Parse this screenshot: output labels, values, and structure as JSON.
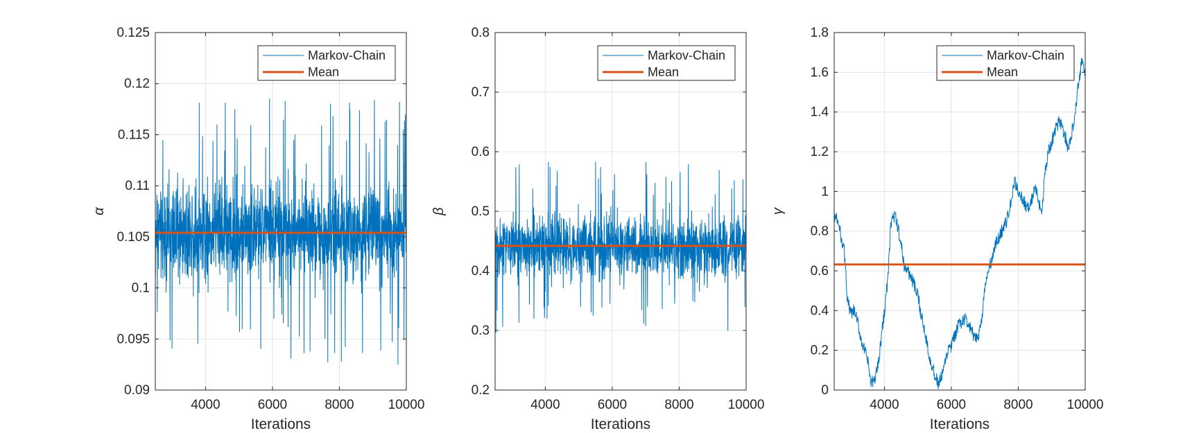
{
  "chart_data": [
    {
      "type": "line",
      "ylabel": "α",
      "xlabel": "Iterations",
      "xlim": [
        2500,
        10000
      ],
      "ylim": [
        0.09,
        0.125
      ],
      "xticks": [
        4000,
        6000,
        8000,
        10000
      ],
      "xtick_labels": [
        "4000",
        "6000",
        "8000",
        "10000"
      ],
      "yticks": [
        0.09,
        0.095,
        0.1,
        0.105,
        0.11,
        0.115,
        0.12,
        0.125
      ],
      "ytick_labels": [
        "0.09",
        "0.095",
        "0.1",
        "0.105",
        "0.11",
        "0.115",
        "0.12",
        "0.125"
      ],
      "grid": true,
      "legend_position": "top-right",
      "series": [
        {
          "name": "Markov-Chain",
          "color": "#0072BD",
          "mode": "noise",
          "x": [
            2500,
            10000
          ],
          "center": 0.1055,
          "spread": 0.011,
          "min": 0.0907,
          "max": 0.1222
        },
        {
          "name": "Mean",
          "color": "#D95319",
          "x": [
            2500,
            10000
          ],
          "y": [
            0.1054,
            0.1054
          ]
        }
      ]
    },
    {
      "type": "line",
      "ylabel": "β",
      "xlabel": "Iterations",
      "xlim": [
        2500,
        10000
      ],
      "ylim": [
        0.2,
        0.8
      ],
      "xticks": [
        4000,
        6000,
        8000,
        10000
      ],
      "xtick_labels": [
        "4000",
        "6000",
        "8000",
        "10000"
      ],
      "yticks": [
        0.2,
        0.3,
        0.4,
        0.5,
        0.6,
        0.7,
        0.8
      ],
      "ytick_labels": [
        "0.2",
        "0.3",
        "0.4",
        "0.5",
        "0.6",
        "0.7",
        "0.8"
      ],
      "grid": true,
      "legend_position": "top-right",
      "series": [
        {
          "name": "Markov-Chain",
          "color": "#0072BD",
          "mode": "noise",
          "x": [
            2500,
            10000
          ],
          "center": 0.44,
          "spread": 0.12,
          "min": 0.26,
          "max": 0.74
        },
        {
          "name": "Mean",
          "color": "#D95319",
          "x": [
            2500,
            10000
          ],
          "y": [
            0.442,
            0.442
          ]
        }
      ]
    },
    {
      "type": "line",
      "ylabel": "γ",
      "xlabel": "Iterations",
      "xlim": [
        2500,
        10000
      ],
      "ylim": [
        0,
        1.8
      ],
      "xticks": [
        4000,
        6000,
        8000,
        10000
      ],
      "xtick_labels": [
        "4000",
        "6000",
        "8000",
        "10000"
      ],
      "yticks": [
        0,
        0.2,
        0.4,
        0.6,
        0.8,
        1,
        1.2,
        1.4,
        1.6,
        1.8
      ],
      "ytick_labels": [
        "0",
        "0.2",
        "0.4",
        "0.6",
        "0.8",
        "1",
        "1.2",
        "1.4",
        "1.6",
        "1.8"
      ],
      "grid": true,
      "legend_position": "top-right",
      "series": [
        {
          "name": "Markov-Chain",
          "color": "#0072BD",
          "mode": "walk",
          "x": [
            2500,
            2600,
            2700,
            2800,
            2900,
            3000,
            3100,
            3200,
            3300,
            3400,
            3500,
            3600,
            3700,
            3800,
            3900,
            4000,
            4100,
            4200,
            4300,
            4400,
            4500,
            4600,
            4700,
            4800,
            4900,
            5000,
            5100,
            5200,
            5300,
            5400,
            5500,
            5600,
            5700,
            5800,
            5900,
            6000,
            6100,
            6200,
            6300,
            6400,
            6500,
            6600,
            6700,
            6800,
            6900,
            7000,
            7100,
            7200,
            7300,
            7400,
            7500,
            7600,
            7700,
            7800,
            7900,
            8000,
            8100,
            8200,
            8300,
            8400,
            8500,
            8600,
            8700,
            8800,
            8900,
            9000,
            9100,
            9200,
            9300,
            9400,
            9500,
            9600,
            9700,
            9800,
            9900,
            10000
          ],
          "y": [
            0.88,
            0.85,
            0.78,
            0.7,
            0.45,
            0.38,
            0.4,
            0.34,
            0.26,
            0.2,
            0.15,
            0.03,
            0.05,
            0.12,
            0.25,
            0.4,
            0.55,
            0.85,
            0.88,
            0.82,
            0.73,
            0.62,
            0.6,
            0.57,
            0.52,
            0.47,
            0.38,
            0.3,
            0.22,
            0.13,
            0.08,
            0.03,
            0.06,
            0.12,
            0.2,
            0.22,
            0.27,
            0.32,
            0.34,
            0.36,
            0.33,
            0.3,
            0.25,
            0.27,
            0.35,
            0.5,
            0.6,
            0.65,
            0.72,
            0.76,
            0.8,
            0.83,
            0.88,
            0.96,
            1.05,
            1.0,
            0.97,
            0.94,
            0.91,
            0.96,
            1.02,
            0.95,
            0.9,
            1.1,
            1.2,
            1.25,
            1.3,
            1.35,
            1.33,
            1.28,
            1.2,
            1.3,
            1.4,
            1.55,
            1.66,
            1.6
          ]
        },
        {
          "name": "Mean",
          "color": "#D95319",
          "x": [
            2500,
            10000
          ],
          "y": [
            0.632,
            0.632
          ]
        }
      ]
    }
  ]
}
